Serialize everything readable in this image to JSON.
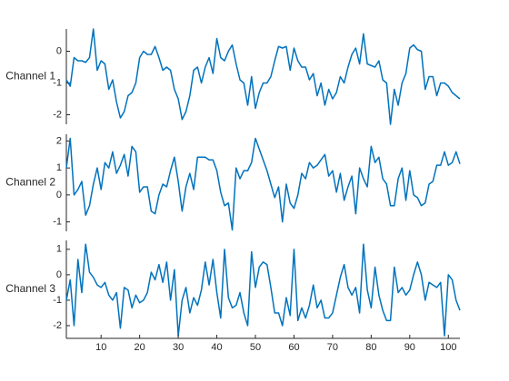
{
  "chart_data": {
    "type": "stackedplot",
    "x": [
      1,
      2,
      3,
      4,
      5,
      6,
      7,
      8,
      9,
      10,
      11,
      12,
      13,
      14,
      15,
      16,
      17,
      18,
      19,
      20,
      21,
      22,
      23,
      24,
      25,
      26,
      27,
      28,
      29,
      30,
      31,
      32,
      33,
      34,
      35,
      36,
      37,
      38,
      39,
      40,
      41,
      42,
      43,
      44,
      45,
      46,
      47,
      48,
      49,
      50,
      51,
      52,
      53,
      54,
      55,
      56,
      57,
      58,
      59,
      60,
      61,
      62,
      63,
      64,
      65,
      66,
      67,
      68,
      69,
      70,
      71,
      72,
      73,
      74,
      75,
      76,
      77,
      78,
      79,
      80,
      81,
      82,
      83,
      84,
      85,
      86,
      87,
      88,
      89,
      90,
      91,
      92,
      93,
      94,
      95,
      96,
      97,
      98,
      99,
      100,
      101,
      102,
      103
    ],
    "xlim": [
      1,
      103
    ],
    "xticks": [
      10,
      20,
      30,
      40,
      50,
      60,
      70,
      80,
      90,
      100
    ],
    "series": [
      {
        "name": "Channel 1",
        "color": "#0072bd",
        "ylim": [
          -2.3,
          0.7
        ],
        "yticks": [
          -2,
          -1,
          0
        ],
        "values": [
          -0.9,
          -1.1,
          -0.2,
          -0.3,
          -0.3,
          -0.35,
          -0.2,
          0.7,
          -0.6,
          -0.3,
          -0.4,
          -1.2,
          -0.9,
          -1.6,
          -2.1,
          -1.9,
          -1.4,
          -1.3,
          -1.0,
          -0.2,
          0.0,
          -0.1,
          -0.1,
          0.15,
          -0.2,
          -0.6,
          -0.5,
          -0.6,
          -1.2,
          -1.5,
          -2.15,
          -1.9,
          -1.4,
          -0.6,
          -0.5,
          -1.0,
          -0.5,
          -0.2,
          -0.7,
          0.4,
          -0.2,
          -0.3,
          0.0,
          0.2,
          -0.4,
          -0.9,
          -1.0,
          -1.7,
          -0.8,
          -1.8,
          -1.3,
          -1.0,
          -1.0,
          -0.8,
          -0.3,
          0.15,
          0.1,
          0.15,
          -0.6,
          0.1,
          -0.3,
          -0.5,
          -0.5,
          -0.9,
          -0.7,
          -1.4,
          -1.0,
          -1.7,
          -1.2,
          -1.5,
          -1.3,
          -0.8,
          -1.0,
          -0.5,
          -0.1,
          0.1,
          -0.4,
          0.55,
          -0.4,
          -0.45,
          -0.5,
          -0.3,
          -0.9,
          -1.0,
          -2.3,
          -1.2,
          -1.7,
          -1.0,
          -0.7,
          0.1,
          0.2,
          0.05,
          0.0,
          -1.2,
          -0.8,
          -0.8,
          -1.4,
          -1.0,
          -1.0,
          -1.1,
          -1.3,
          -1.4,
          -1.5
        ]
      },
      {
        "name": "Channel 2",
        "color": "#0072bd",
        "ylim": [
          -1.35,
          2.25
        ],
        "yticks": [
          -1,
          0,
          1,
          2
        ],
        "values": [
          1.0,
          2.1,
          0.0,
          0.2,
          0.5,
          -0.75,
          -0.4,
          0.4,
          1.0,
          0.2,
          1.2,
          1.0,
          1.6,
          0.8,
          1.1,
          1.5,
          0.7,
          1.8,
          1.6,
          0.1,
          0.3,
          0.3,
          -0.6,
          -0.7,
          0.0,
          0.4,
          0.3,
          0.9,
          1.4,
          0.5,
          -0.6,
          0.3,
          0.8,
          0.2,
          1.4,
          1.4,
          1.4,
          1.3,
          1.3,
          0.9,
          0.1,
          -0.4,
          -0.3,
          -1.3,
          1.0,
          0.6,
          0.9,
          0.9,
          1.2,
          2.1,
          1.7,
          1.3,
          0.9,
          0.4,
          -0.1,
          0.3,
          -1.0,
          0.4,
          -0.3,
          -0.5,
          0.0,
          0.8,
          0.6,
          1.2,
          1.0,
          1.1,
          1.3,
          1.5,
          0.7,
          0.9,
          0.1,
          0.8,
          -0.2,
          0.3,
          0.7,
          -0.7,
          1.0,
          0.6,
          0.3,
          1.8,
          1.2,
          1.4,
          0.6,
          0.4,
          -0.4,
          -0.4,
          0.6,
          1.0,
          -0.2,
          0.9,
          0.0,
          -0.1,
          -0.4,
          -0.3,
          0.4,
          0.5,
          1.1,
          1.1,
          1.6,
          1.1,
          1.2,
          1.6,
          1.15
        ]
      },
      {
        "name": "Channel 3",
        "color": "#0072bd",
        "ylim": [
          -2.5,
          1.35
        ],
        "yticks": [
          -2,
          -1,
          0,
          1
        ],
        "values": [
          -1.0,
          -0.2,
          -2.0,
          0.6,
          -0.7,
          1.2,
          0.1,
          -0.1,
          -0.4,
          -0.5,
          -0.3,
          -0.8,
          -1.0,
          -0.7,
          -2.1,
          -0.5,
          -0.6,
          -1.3,
          -0.8,
          -1.1,
          -1.0,
          -0.7,
          0.1,
          -0.2,
          0.4,
          -0.3,
          0.5,
          -1.0,
          0.2,
          -2.4,
          -1.0,
          -0.5,
          -1.5,
          -0.9,
          -1.2,
          -0.6,
          0.5,
          -0.4,
          0.6,
          -0.7,
          -1.7,
          1.0,
          -0.9,
          -1.3,
          -1.2,
          -0.7,
          -1.5,
          -2.0,
          0.9,
          -0.5,
          0.3,
          0.5,
          0.4,
          -0.5,
          -1.5,
          -1.5,
          -2.0,
          -0.9,
          -1.6,
          1.0,
          -1.8,
          -1.3,
          -1.7,
          -1.2,
          -0.4,
          -1.3,
          -1.0,
          -1.7,
          -1.7,
          -1.5,
          -0.8,
          -0.1,
          0.4,
          -0.5,
          -0.8,
          -0.5,
          -1.5,
          1.2,
          -0.6,
          -1.3,
          0.3,
          -0.8,
          -1.4,
          -1.8,
          -1.8,
          0.3,
          -0.7,
          -0.5,
          -0.8,
          -0.6,
          0.0,
          0.5,
          0.0,
          -1.0,
          -0.3,
          -0.4,
          -0.5,
          -0.3,
          -2.4,
          0.0,
          -0.2,
          -1.0,
          -1.4
        ]
      }
    ]
  }
}
